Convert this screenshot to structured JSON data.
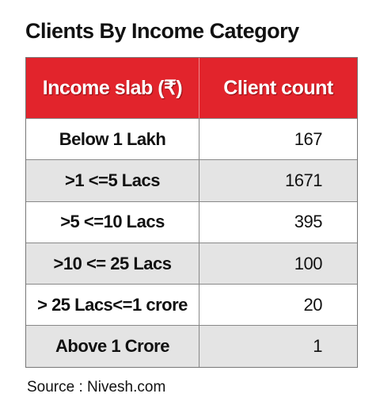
{
  "title": "Clients By Income Category",
  "table": {
    "header": [
      "Income slab (₹)",
      "Client count"
    ],
    "rows": [
      [
        "Below 1 Lakh",
        167
      ],
      [
        ">1 <=5 Lacs",
        1671
      ],
      [
        ">5 <=10 Lacs",
        395
      ],
      [
        ">10 <= 25 Lacs",
        100
      ],
      [
        "> 25 Lacs<=1 crore",
        20
      ],
      [
        "Above 1 Crore",
        1
      ]
    ]
  },
  "source": "Source : Nivesh.com"
}
